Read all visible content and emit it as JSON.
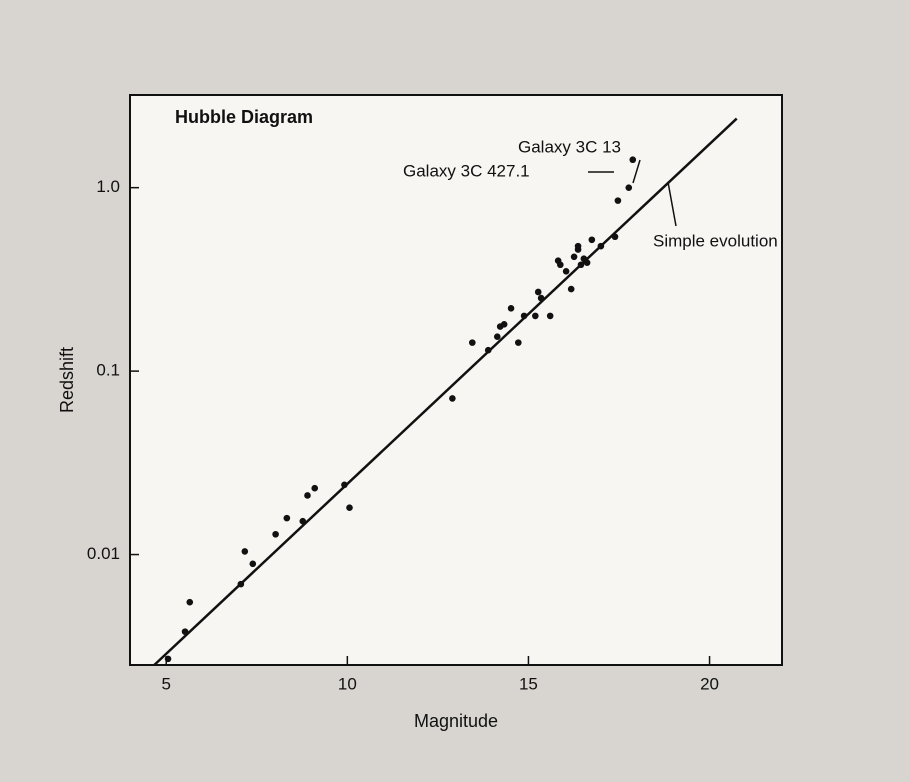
{
  "chart_data": {
    "type": "scatter",
    "title": "Hubble Diagram",
    "xlabel": "Magnitude",
    "ylabel": "Redshift",
    "log_y": true,
    "xlim": [
      4,
      22
    ],
    "ylim": [
      0.0025,
      3.2
    ],
    "xticks": [
      5,
      10,
      15,
      20
    ],
    "yticks": [
      0.01,
      0.1,
      {
        "value": 1,
        "label": "1.0"
      }
    ],
    "color": "#111111",
    "points": {
      "x": [
        5.05,
        5.52,
        5.65,
        7.06,
        7.17,
        7.39,
        8.02,
        8.33,
        8.77,
        8.9,
        9.1,
        9.92,
        10.06,
        12.9,
        13.45,
        13.89,
        14.14,
        14.22,
        14.33,
        14.52,
        14.72,
        14.88,
        15.19,
        15.27,
        15.35,
        15.6,
        15.82,
        15.88,
        16.04,
        16.18,
        16.26,
        16.37,
        16.45,
        16.53,
        16.37,
        16.62,
        16.75,
        17.0,
        17.39,
        17.47,
        17.77,
        17.88
      ],
      "values": [
        0.0027,
        0.0038,
        0.0055,
        0.0069,
        0.0104,
        0.0089,
        0.0129,
        0.0158,
        0.0152,
        0.021,
        0.023,
        0.024,
        0.018,
        0.071,
        0.143,
        0.13,
        0.154,
        0.175,
        0.18,
        0.22,
        0.143,
        0.2,
        0.2,
        0.27,
        0.25,
        0.2,
        0.4,
        0.38,
        0.35,
        0.28,
        0.42,
        0.46,
        0.38,
        0.41,
        0.48,
        0.39,
        0.52,
        0.48,
        0.54,
        0.85,
        1.0,
        1.42
      ]
    },
    "fit_line": {
      "x": [
        4.67,
        20.75
      ],
      "values": [
        0.0025,
        2.38
      ]
    },
    "annotations": [
      "Galaxy 3C 13",
      "Galaxy 3C 427.1",
      "Simple evolution"
    ]
  }
}
